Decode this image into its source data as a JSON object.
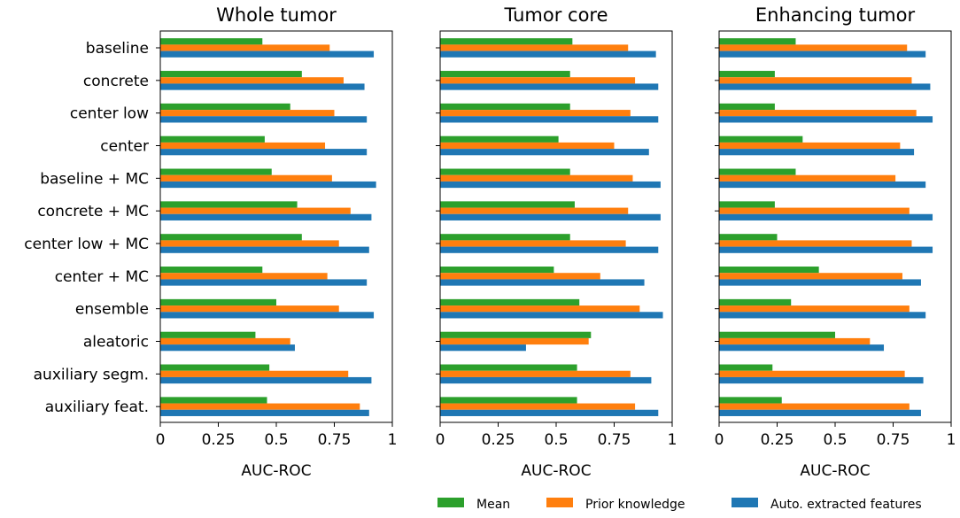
{
  "legend": {
    "entries": [
      {
        "label": "Mean",
        "color": "#2ca02c"
      },
      {
        "label": "Prior knowledge",
        "color": "#ff7f0e"
      },
      {
        "label": "Auto. extracted features",
        "color": "#1f77b4"
      }
    ]
  },
  "chart_data": [
    {
      "type": "bar",
      "orientation": "horizontal",
      "title": "Whole tumor",
      "xlabel": "AUC-ROC",
      "xlim": [
        0,
        1
      ],
      "xticks": [
        "0",
        "0.25",
        "0.5",
        "0.75",
        "1"
      ],
      "categories": [
        "baseline",
        "concrete",
        "center low",
        "center",
        "baseline + MC",
        "concrete + MC",
        "center low + MC",
        "center + MC",
        "ensemble",
        "aleatoric",
        "auxiliary segm.",
        "auxiliary feat."
      ],
      "series": [
        {
          "name": "Mean",
          "values": [
            0.44,
            0.61,
            0.56,
            0.45,
            0.48,
            0.59,
            0.61,
            0.44,
            0.5,
            0.41,
            0.47,
            0.46
          ]
        },
        {
          "name": "Prior knowledge",
          "values": [
            0.73,
            0.79,
            0.75,
            0.71,
            0.74,
            0.82,
            0.77,
            0.72,
            0.77,
            0.56,
            0.81,
            0.86
          ]
        },
        {
          "name": "Auto. extracted features",
          "values": [
            0.92,
            0.88,
            0.89,
            0.89,
            0.93,
            0.91,
            0.9,
            0.89,
            0.92,
            0.58,
            0.91,
            0.9
          ]
        }
      ]
    },
    {
      "type": "bar",
      "orientation": "horizontal",
      "title": "Tumor core",
      "xlabel": "AUC-ROC",
      "xlim": [
        0,
        1
      ],
      "xticks": [
        "0",
        "0.25",
        "0.5",
        "0.75",
        "1"
      ],
      "categories": [
        "baseline",
        "concrete",
        "center low",
        "center",
        "baseline + MC",
        "concrete + MC",
        "center low + MC",
        "center + MC",
        "ensemble",
        "aleatoric",
        "auxiliary segm.",
        "auxiliary feat."
      ],
      "series": [
        {
          "name": "Mean",
          "values": [
            0.57,
            0.56,
            0.56,
            0.51,
            0.56,
            0.58,
            0.56,
            0.49,
            0.6,
            0.65,
            0.59,
            0.59
          ]
        },
        {
          "name": "Prior knowledge",
          "values": [
            0.81,
            0.84,
            0.82,
            0.75,
            0.83,
            0.81,
            0.8,
            0.69,
            0.86,
            0.64,
            0.82,
            0.84
          ]
        },
        {
          "name": "Auto. extracted features",
          "values": [
            0.93,
            0.94,
            0.94,
            0.9,
            0.95,
            0.95,
            0.94,
            0.88,
            0.96,
            0.37,
            0.91,
            0.94
          ]
        }
      ]
    },
    {
      "type": "bar",
      "orientation": "horizontal",
      "title": "Enhancing tumor",
      "xlabel": "AUC-ROC",
      "xlim": [
        0,
        1
      ],
      "xticks": [
        "0",
        "0.25",
        "0.5",
        "0.75",
        "1"
      ],
      "categories": [
        "baseline",
        "concrete",
        "center low",
        "center",
        "baseline + MC",
        "concrete + MC",
        "center low + MC",
        "center + MC",
        "ensemble",
        "aleatoric",
        "auxiliary segm.",
        "auxiliary feat."
      ],
      "series": [
        {
          "name": "Mean",
          "values": [
            0.33,
            0.24,
            0.24,
            0.36,
            0.33,
            0.24,
            0.25,
            0.43,
            0.31,
            0.5,
            0.23,
            0.27
          ]
        },
        {
          "name": "Prior knowledge",
          "values": [
            0.81,
            0.83,
            0.85,
            0.78,
            0.76,
            0.82,
            0.83,
            0.79,
            0.82,
            0.65,
            0.8,
            0.82
          ]
        },
        {
          "name": "Auto. extracted features",
          "values": [
            0.89,
            0.91,
            0.92,
            0.84,
            0.89,
            0.92,
            0.92,
            0.87,
            0.89,
            0.71,
            0.88,
            0.87
          ]
        }
      ]
    }
  ]
}
